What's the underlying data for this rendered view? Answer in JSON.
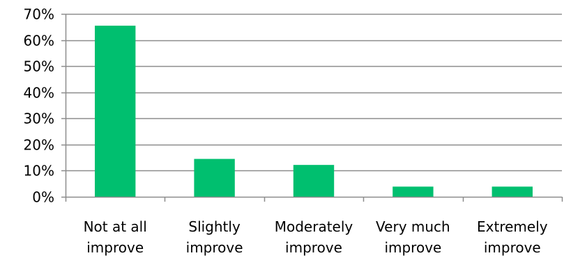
{
  "chart_data": {
    "type": "bar",
    "categories": [
      [
        "Not at all",
        "improve"
      ],
      [
        "Slightly",
        "improve"
      ],
      [
        "Moderately",
        "improve"
      ],
      [
        "Very much",
        "improve"
      ],
      [
        "Extremely",
        "improve"
      ]
    ],
    "values": [
      65.5,
      14.5,
      12.2,
      3.9,
      3.9
    ],
    "ylim": [
      0,
      70
    ],
    "yticks": [
      0,
      10,
      20,
      30,
      40,
      50,
      60,
      70
    ],
    "ytick_labels": [
      "0%",
      "10%",
      "20%",
      "30%",
      "40%",
      "50%",
      "60%",
      "70%"
    ],
    "title": "",
    "xlabel": "",
    "ylabel": "",
    "grid": true,
    "legend": "none",
    "colors": {
      "bar": "#00BF6F",
      "grid": "#8C8C8C",
      "axis": "#8C8C8C",
      "text": "#000000"
    }
  }
}
